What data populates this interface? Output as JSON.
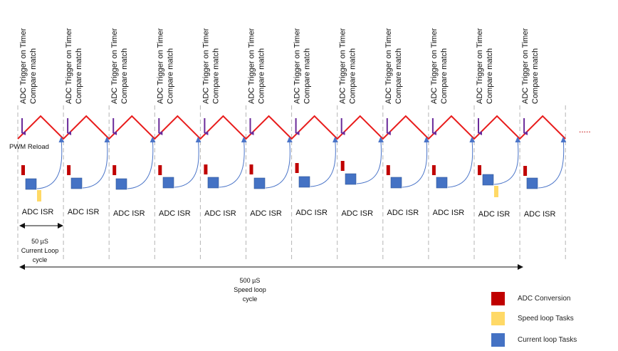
{
  "colors": {
    "triangle": "#e81c1c",
    "trigger_arrow": "#6a2a9a",
    "adc_conversion": "#c00000",
    "speed_task": "#ffd966",
    "current_task": "#4472c4",
    "isr_arc": "#4a74c8",
    "grid": "#b5b5b5",
    "text": "#111111"
  },
  "trigger_label": {
    "line1": "ADC Trigger on Timer",
    "line2": "Compare match"
  },
  "pwm_reload_label": "PWM Reload",
  "isr_label": "ADC ISR",
  "ellipsis": ".....",
  "current_loop": {
    "value": "50 µS",
    "line2": "Current Loop",
    "line3": "cycle"
  },
  "speed_loop": {
    "value": "500 µS",
    "line2": "Speed loop",
    "line3": "cycle"
  },
  "periods": 12,
  "speed_task_periods": [
    0,
    10
  ],
  "legend": [
    {
      "key": "adc_conversion",
      "label": "ADC Conversion",
      "icon": "red-square"
    },
    {
      "key": "speed_task",
      "label": "Speed loop Tasks",
      "icon": "yellow-square"
    },
    {
      "key": "current_task",
      "label": "Current loop Tasks",
      "icon": "blue-square"
    }
  ]
}
